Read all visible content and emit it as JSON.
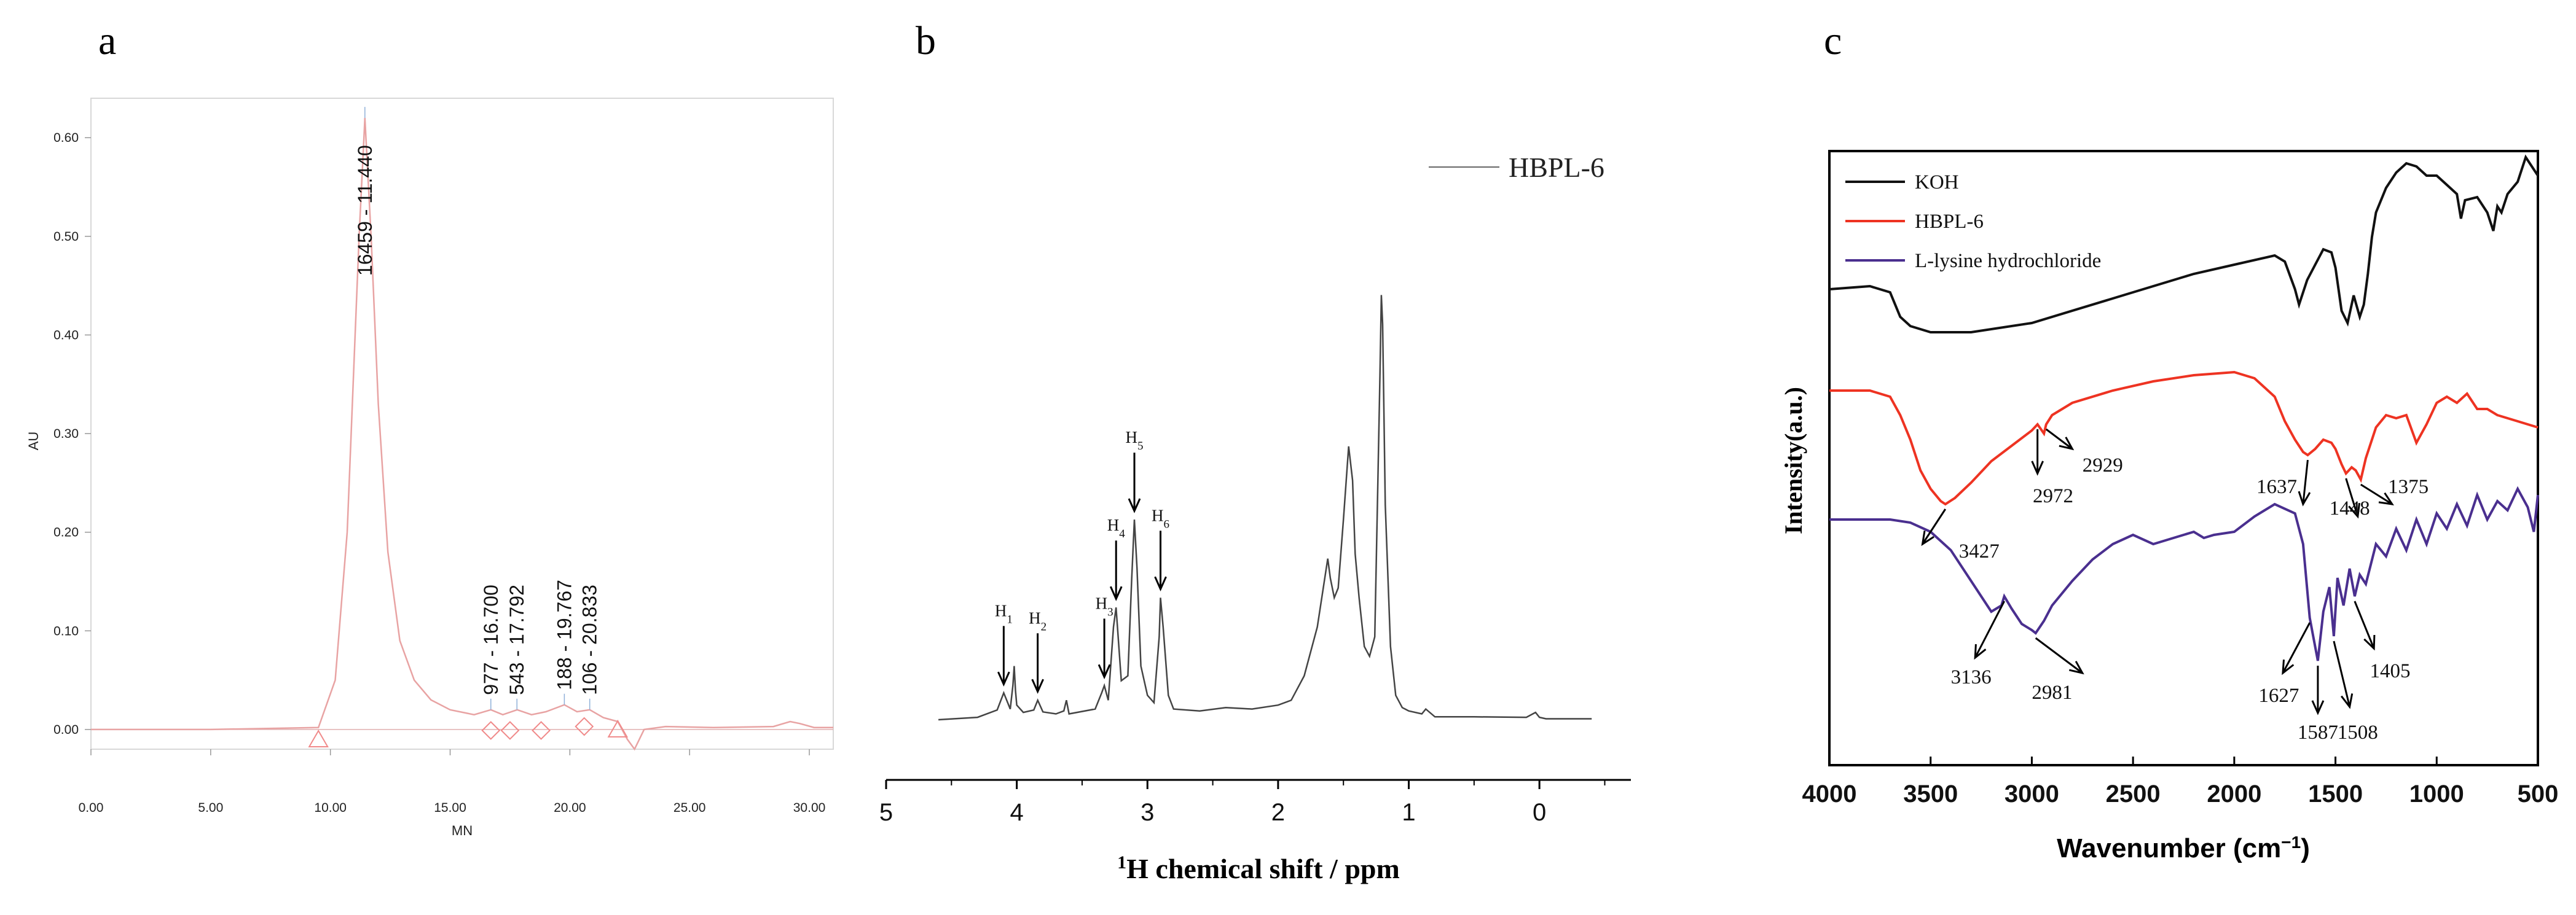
{
  "chart_data": [
    {
      "panel": "a",
      "type": "line",
      "xlabel": "MN",
      "ylabel": "AU",
      "xlim": [
        0,
        31
      ],
      "ylim": [
        -0.02,
        0.64
      ],
      "x_ticks": [
        "0.00",
        "5.00",
        "10.00",
        "15.00",
        "20.00",
        "25.00",
        "30.00"
      ],
      "y_ticks": [
        "0.00",
        "0.10",
        "0.20",
        "0.30",
        "0.40",
        "0.50",
        "0.60"
      ],
      "grid": false,
      "series": [
        {
          "color": "#e8a3a3",
          "x": [
            0,
            5,
            9.5,
            10.2,
            10.7,
            11.0,
            11.2,
            11.44,
            11.7,
            12.0,
            12.4,
            12.9,
            13.5,
            14.2,
            15.0,
            16.0,
            16.7,
            17.2,
            17.8,
            18.4,
            19.0,
            19.77,
            20.3,
            20.83,
            21.4,
            22.0,
            22.4,
            22.7,
            23.1,
            24.0,
            26.0,
            28.5,
            29.2,
            29.6,
            30.2,
            31.0
          ],
          "y": [
            0.0,
            0.0,
            0.002,
            0.05,
            0.2,
            0.38,
            0.5,
            0.62,
            0.5,
            0.33,
            0.18,
            0.09,
            0.05,
            0.03,
            0.02,
            0.015,
            0.02,
            0.015,
            0.02,
            0.015,
            0.018,
            0.025,
            0.018,
            0.02,
            0.012,
            0.008,
            -0.01,
            -0.02,
            0.0,
            0.003,
            0.002,
            0.003,
            0.008,
            0.006,
            0.002,
            0.002
          ]
        }
      ],
      "peak_labels": [
        {
          "text": "16459 - 11.440",
          "x": 11.44,
          "y": 0.62
        },
        {
          "text": "977 - 16.700",
          "x": 16.7,
          "y": 0.02
        },
        {
          "text": "543 - 17.792",
          "x": 17.79,
          "y": 0.02
        },
        {
          "text": "188 - 19.767",
          "x": 19.77,
          "y": 0.025
        },
        {
          "text": "106 - 20.833",
          "x": 20.83,
          "y": 0.02
        }
      ],
      "markers": [
        {
          "shape": "triangle",
          "x": 9.5,
          "y": -0.01
        },
        {
          "shape": "diamond",
          "x": 16.7,
          "y": -0.001
        },
        {
          "shape": "diamond",
          "x": 17.5,
          "y": -0.001
        },
        {
          "shape": "diamond",
          "x": 18.8,
          "y": -0.001
        },
        {
          "shape": "diamond",
          "x": 20.6,
          "y": 0.003
        },
        {
          "shape": "triangle",
          "x": 22.0,
          "y": 0.0
        }
      ]
    },
    {
      "panel": "b",
      "type": "line",
      "xlabel": "1H chemical shift / ppm",
      "xlabel_superscript": "1",
      "xlabel_rest": "H chemical shift / ppm",
      "xlim": [
        5,
        -0.7
      ],
      "ylim": [
        0,
        100
      ],
      "x_ticks": [
        5,
        4,
        3,
        2,
        1,
        0
      ],
      "grid": false,
      "legend": "top-right",
      "series": [
        {
          "name": "HBPL-6",
          "color": "#444444",
          "x": [
            4.6,
            4.3,
            4.15,
            4.1,
            4.05,
            4.03,
            4.02,
            4.01,
            4.0,
            3.95,
            3.87,
            3.84,
            3.8,
            3.7,
            3.64,
            3.62,
            3.6,
            3.4,
            3.35,
            3.33,
            3.3,
            3.26,
            3.24,
            3.2,
            3.15,
            3.12,
            3.1,
            3.08,
            3.05,
            3.0,
            2.95,
            2.91,
            2.9,
            2.88,
            2.84,
            2.8,
            2.6,
            2.4,
            2.2,
            2.0,
            1.9,
            1.8,
            1.7,
            1.62,
            1.6,
            1.57,
            1.54,
            1.5,
            1.46,
            1.43,
            1.41,
            1.38,
            1.34,
            1.3,
            1.26,
            1.24,
            1.22,
            1.21,
            1.2,
            1.18,
            1.14,
            1.1,
            1.05,
            1.0,
            0.9,
            0.87,
            0.8,
            0.5,
            0.1,
            0.03,
            0.0,
            -0.05,
            -0.4
          ],
          "y": [
            1.0,
            1.5,
            3.0,
            6.5,
            3.2,
            8.0,
            12.0,
            7.0,
            4.0,
            2.5,
            3.0,
            5.0,
            2.6,
            2.2,
            2.8,
            5.0,
            2.2,
            3.2,
            6.5,
            8.0,
            5.0,
            20.0,
            24.0,
            9.0,
            10.0,
            30.0,
            42.0,
            32.0,
            12.0,
            6.0,
            4.5,
            18.0,
            26.0,
            20.0,
            6.0,
            3.2,
            2.8,
            3.5,
            3.2,
            4.0,
            5.0,
            10.0,
            20.0,
            34.0,
            30.0,
            26.0,
            28.0,
            42.0,
            57.0,
            50.0,
            35.0,
            26.0,
            16.0,
            14.0,
            18.0,
            45.0,
            72.0,
            88.0,
            82.0,
            45.0,
            16.0,
            6.0,
            3.5,
            2.8,
            2.2,
            3.2,
            1.6,
            1.6,
            1.5,
            2.5,
            1.5,
            1.2,
            1.2
          ]
        }
      ],
      "annotations": [
        {
          "label": "H1",
          "base": "H",
          "sub": "1",
          "x": 4.1,
          "y": 6.5
        },
        {
          "label": "H2",
          "base": "H",
          "sub": "2",
          "x": 3.84,
          "y": 5.0
        },
        {
          "label": "H3",
          "base": "H",
          "sub": "3",
          "x": 3.33,
          "y": 8.0
        },
        {
          "label": "H4",
          "base": "H",
          "sub": "4",
          "x": 3.24,
          "y": 24.0
        },
        {
          "label": "H5",
          "base": "H",
          "sub": "5",
          "x": 3.1,
          "y": 42.0
        },
        {
          "label": "H6",
          "base": "H",
          "sub": "6",
          "x": 2.9,
          "y": 26.0
        }
      ]
    },
    {
      "panel": "c",
      "type": "line",
      "xlabel": "Wavenumber (cm−1)",
      "xlabel_base": "Wavenumber (cm",
      "xlabel_superscript": "−1",
      "xlabel_close": ")",
      "ylabel": "Intensity(a.u.)",
      "xlim": [
        4000,
        500
      ],
      "ylim": [
        0,
        100
      ],
      "x_ticks": [
        4000,
        3500,
        3000,
        2500,
        2000,
        1500,
        1000,
        500
      ],
      "grid": false,
      "legend": "top-left",
      "series": [
        {
          "name": "KOH",
          "color": "#111111",
          "x": [
            4000,
            3800,
            3700,
            3650,
            3600,
            3500,
            3300,
            3000,
            2500,
            2200,
            2000,
            1800,
            1750,
            1700,
            1680,
            1660,
            1640,
            1600,
            1560,
            1520,
            1500,
            1470,
            1440,
            1410,
            1380,
            1360,
            1340,
            1320,
            1300,
            1250,
            1200,
            1150,
            1100,
            1050,
            1000,
            950,
            900,
            880,
            860,
            800,
            750,
            720,
            700,
            680,
            650,
            600,
            560,
            520,
            500
          ],
          "y": [
            77.5,
            78.0,
            77.0,
            73.0,
            71.5,
            70.5,
            70.5,
            72.0,
            77.0,
            80.0,
            81.5,
            83.0,
            82.0,
            77.5,
            75.0,
            77.0,
            79.0,
            81.5,
            84.0,
            83.5,
            81.0,
            74.0,
            72.0,
            76.5,
            73.0,
            75.0,
            80.0,
            86.0,
            90.0,
            94.0,
            96.5,
            98.0,
            97.5,
            96.0,
            96.0,
            94.5,
            93.0,
            89.0,
            92.0,
            92.5,
            90.0,
            87.0,
            91.0,
            90.0,
            93.0,
            95.0,
            99.0,
            97.0,
            96.0
          ]
        },
        {
          "name": "HBPL-6",
          "color": "#ee3322",
          "x": [
            4000,
            3800,
            3700,
            3650,
            3600,
            3550,
            3500,
            3450,
            3427,
            3380,
            3300,
            3200,
            3100,
            3000,
            2972,
            2940,
            2929,
            2900,
            2800,
            2600,
            2400,
            2200,
            2000,
            1900,
            1800,
            1750,
            1700,
            1660,
            1637,
            1600,
            1560,
            1520,
            1500,
            1470,
            1448,
            1420,
            1400,
            1375,
            1350,
            1300,
            1250,
            1200,
            1150,
            1100,
            1050,
            1000,
            950,
            900,
            850,
            800,
            750,
            700,
            650,
            600,
            550,
            500
          ],
          "y": [
            61.0,
            61.0,
            60.0,
            57.0,
            53.0,
            48.0,
            45.0,
            43.0,
            42.5,
            43.5,
            46.0,
            49.5,
            52.0,
            54.5,
            55.5,
            54.0,
            55.5,
            57.0,
            59.0,
            61.0,
            62.5,
            63.5,
            64.0,
            63.0,
            60.0,
            56.0,
            53.0,
            51.0,
            50.5,
            51.5,
            53.0,
            52.5,
            51.5,
            49.0,
            47.5,
            48.5,
            48.0,
            46.5,
            50.0,
            55.0,
            57.0,
            56.5,
            57.0,
            52.5,
            55.5,
            59.0,
            60.0,
            59.0,
            60.5,
            58.0,
            58.0,
            57.0,
            56.5,
            56.0,
            55.5,
            55.0
          ]
        },
        {
          "name": "L-lysine hydrochloride",
          "color": "#4a2f8f",
          "x": [
            4000,
            3700,
            3600,
            3500,
            3400,
            3300,
            3200,
            3150,
            3136,
            3100,
            3050,
            3000,
            2981,
            2940,
            2900,
            2800,
            2700,
            2600,
            2500,
            2400,
            2300,
            2200,
            2150,
            2100,
            2000,
            1900,
            1800,
            1700,
            1660,
            1627,
            1610,
            1587,
            1560,
            1530,
            1508,
            1490,
            1460,
            1430,
            1405,
            1380,
            1350,
            1300,
            1250,
            1200,
            1150,
            1100,
            1050,
            1000,
            950,
            900,
            850,
            800,
            750,
            700,
            650,
            600,
            550,
            520,
            500
          ],
          "y": [
            40.0,
            40.0,
            39.5,
            38.0,
            35.0,
            30.0,
            25.0,
            26.0,
            27.5,
            25.5,
            23.0,
            22.0,
            21.5,
            23.5,
            26.0,
            30.0,
            33.5,
            36.0,
            37.5,
            36.0,
            37.0,
            38.0,
            37.0,
            37.5,
            38.0,
            40.5,
            42.5,
            41.0,
            36.0,
            24.0,
            21.0,
            17.0,
            25.0,
            29.0,
            21.0,
            30.5,
            26.0,
            32.0,
            27.5,
            31.0,
            29.5,
            36.0,
            34.0,
            38.5,
            35.0,
            40.0,
            36.0,
            41.0,
            38.5,
            42.5,
            39.0,
            44.0,
            40.0,
            43.0,
            41.5,
            45.0,
            42.0,
            38.0,
            44.0
          ]
        }
      ],
      "annotations": [
        {
          "text": "3427",
          "series": 1,
          "x": 3427,
          "y": 42.5,
          "tip_x": 3540,
          "tip_y": 36.0,
          "label_x": 3260,
          "label_y": 35.0
        },
        {
          "text": "2972",
          "series": 1,
          "x": 2972,
          "y": 55.5,
          "tip_x": 2972,
          "tip_y": 47.5,
          "label_x": 2895,
          "label_y": 44.0
        },
        {
          "text": "2929",
          "series": 1,
          "x": 2929,
          "y": 55.5,
          "tip_x": 2800,
          "tip_y": 51.5,
          "label_x": 2650,
          "label_y": 49.0
        },
        {
          "text": "1637",
          "series": 1,
          "x": 1637,
          "y": 50.5,
          "tip_x": 1660,
          "tip_y": 42.5,
          "label_x": 1790,
          "label_y": 45.5
        },
        {
          "text": "1448",
          "series": 1,
          "x": 1448,
          "y": 47.5,
          "tip_x": 1390,
          "tip_y": 40.5,
          "label_x": 1430,
          "label_y": 42.0
        },
        {
          "text": "1375",
          "series": 1,
          "x": 1375,
          "y": 46.5,
          "tip_x": 1220,
          "tip_y": 42.5,
          "label_x": 1140,
          "label_y": 45.5
        },
        {
          "text": "3136",
          "series": 2,
          "x": 3136,
          "y": 27.5,
          "tip_x": 3280,
          "tip_y": 17.5,
          "label_x": 3300,
          "label_y": 14.5
        },
        {
          "text": "2981",
          "series": 2,
          "x": 2981,
          "y": 21.5,
          "tip_x": 2750,
          "tip_y": 15.0,
          "label_x": 2900,
          "label_y": 12.0
        },
        {
          "text": "1627",
          "series": 2,
          "x": 1627,
          "y": 24.0,
          "tip_x": 1760,
          "tip_y": 15.0,
          "label_x": 1780,
          "label_y": 11.5
        },
        {
          "text": "1587",
          "series": 2,
          "x": 1587,
          "y": 17.0,
          "tip_x": 1587,
          "tip_y": 8.5,
          "label_x": 1587,
          "label_y": 5.5
        },
        {
          "text": "1508",
          "series": 2,
          "x": 1508,
          "y": 21.0,
          "tip_x": 1430,
          "tip_y": 9.5,
          "label_x": 1390,
          "label_y": 5.5
        },
        {
          "text": "1405",
          "series": 2,
          "x": 1405,
          "y": 27.5,
          "tip_x": 1310,
          "tip_y": 19.0,
          "label_x": 1230,
          "label_y": 15.5
        }
      ]
    }
  ],
  "panel_letters": {
    "a": "a",
    "b": "b",
    "c": "c"
  }
}
